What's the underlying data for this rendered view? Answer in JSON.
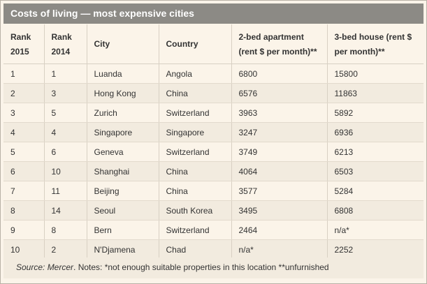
{
  "title": "Costs of living — most expensive cities",
  "table": {
    "headers": [
      {
        "top": "Rank",
        "bottom": "2015"
      },
      {
        "top": "Rank",
        "bottom": "2014"
      },
      {
        "top": "City",
        "bottom": ""
      },
      {
        "top": "Country",
        "bottom": ""
      },
      {
        "top": "2-bed apartment",
        "bottom": "(rent $ per month)**"
      },
      {
        "top": "3-bed house (rent $",
        "bottom": "per month)**"
      }
    ],
    "rows": [
      [
        "1",
        "1",
        "Luanda",
        "Angola",
        "6800",
        "15800"
      ],
      [
        "2",
        "3",
        "Hong Kong",
        "China",
        "6576",
        "11863"
      ],
      [
        "3",
        "5",
        "Zurich",
        "Switzerland",
        "3963",
        "5892"
      ],
      [
        "4",
        "4",
        "Singapore",
        "Singapore",
        "3247",
        "6936"
      ],
      [
        "5",
        "6",
        "Geneva",
        "Switzerland",
        "3749",
        "6213"
      ],
      [
        "6",
        "10",
        "Shanghai",
        "China",
        "4064",
        "6503"
      ],
      [
        "7",
        "11",
        "Beijing",
        "China",
        "3577",
        "5284"
      ],
      [
        "8",
        "14",
        "Seoul",
        "South Korea",
        "3495",
        "6808"
      ],
      [
        "9",
        "8",
        "Bern",
        "Switzerland",
        "2464",
        "n/a*"
      ],
      [
        "10",
        "2",
        "N'Djamena",
        "Chad",
        "n/a*",
        "2252"
      ]
    ]
  },
  "footer": {
    "source": "Source: Mercer",
    "notes": ". Notes: *not enough suitable properties in this location **unfurnished"
  }
}
